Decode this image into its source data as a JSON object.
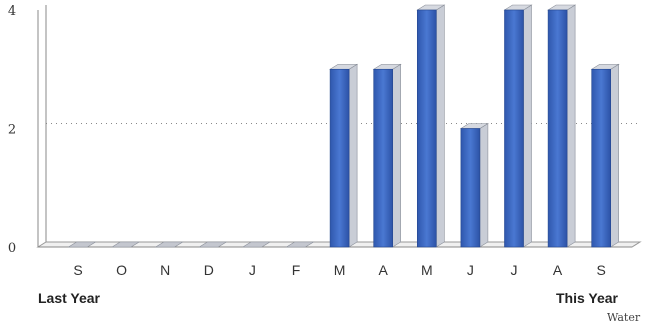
{
  "chart_data": {
    "type": "bar",
    "style": "3d",
    "categories": [
      "S",
      "O",
      "N",
      "D",
      "J",
      "F",
      "M",
      "A",
      "M",
      "J",
      "J",
      "A",
      "S"
    ],
    "values": [
      0,
      0,
      0,
      0,
      0,
      0,
      3,
      3,
      4,
      2,
      4,
      4,
      3
    ],
    "ylim": [
      0,
      4
    ],
    "yticks": [
      0,
      2,
      4
    ],
    "grid": "dotted horizontal at 2",
    "bar_color": "#3f6bc4"
  },
  "annotations": {
    "left": "Last Year",
    "right": "This Year"
  },
  "watermark": "Water"
}
